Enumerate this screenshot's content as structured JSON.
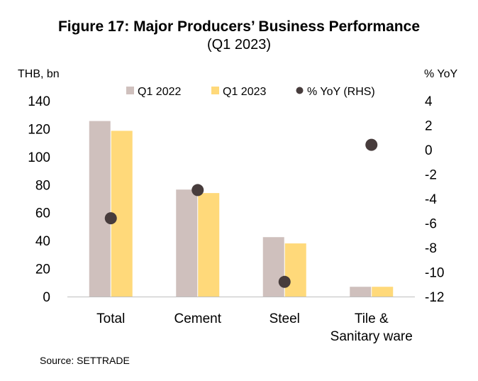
{
  "chart_data": {
    "type": "bar",
    "title": "Figure 17: Major Producers’ Business Performance",
    "subtitle": "(Q1 2023)",
    "ylabel": "THB, bn",
    "y2label": "% YoY",
    "categories": [
      "Total",
      "Cement",
      "Steel",
      "Tile & Sanitary ware"
    ],
    "category_lines": [
      [
        "Total"
      ],
      [
        "Cement"
      ],
      [
        "Steel"
      ],
      [
        "Tile &",
        "Sanitary ware"
      ]
    ],
    "series": [
      {
        "name": "Q1 2022",
        "type": "bar",
        "axis": "left",
        "color": "#cfc0bd",
        "values": [
          125.5,
          76.5,
          42.5,
          7
        ]
      },
      {
        "name": "Q1 2023",
        "type": "bar",
        "axis": "left",
        "color": "#ffd97a",
        "values": [
          118.5,
          74,
          38,
          7
        ]
      },
      {
        "name": "% YoY (RHS)",
        "type": "scatter",
        "axis": "right",
        "color": "#473c3c",
        "values": [
          -5.6,
          -3.3,
          -10.8,
          0.4
        ]
      }
    ],
    "ylim": [
      0,
      140
    ],
    "yticks": [
      0,
      20,
      40,
      60,
      80,
      100,
      120,
      140
    ],
    "y2lim": [
      -12,
      4
    ],
    "y2ticks": [
      -12,
      -10,
      -8,
      -6,
      -4,
      -2,
      0,
      2,
      4
    ],
    "grid": false,
    "legend_position": "top"
  },
  "source": "Source: SETTRADE"
}
